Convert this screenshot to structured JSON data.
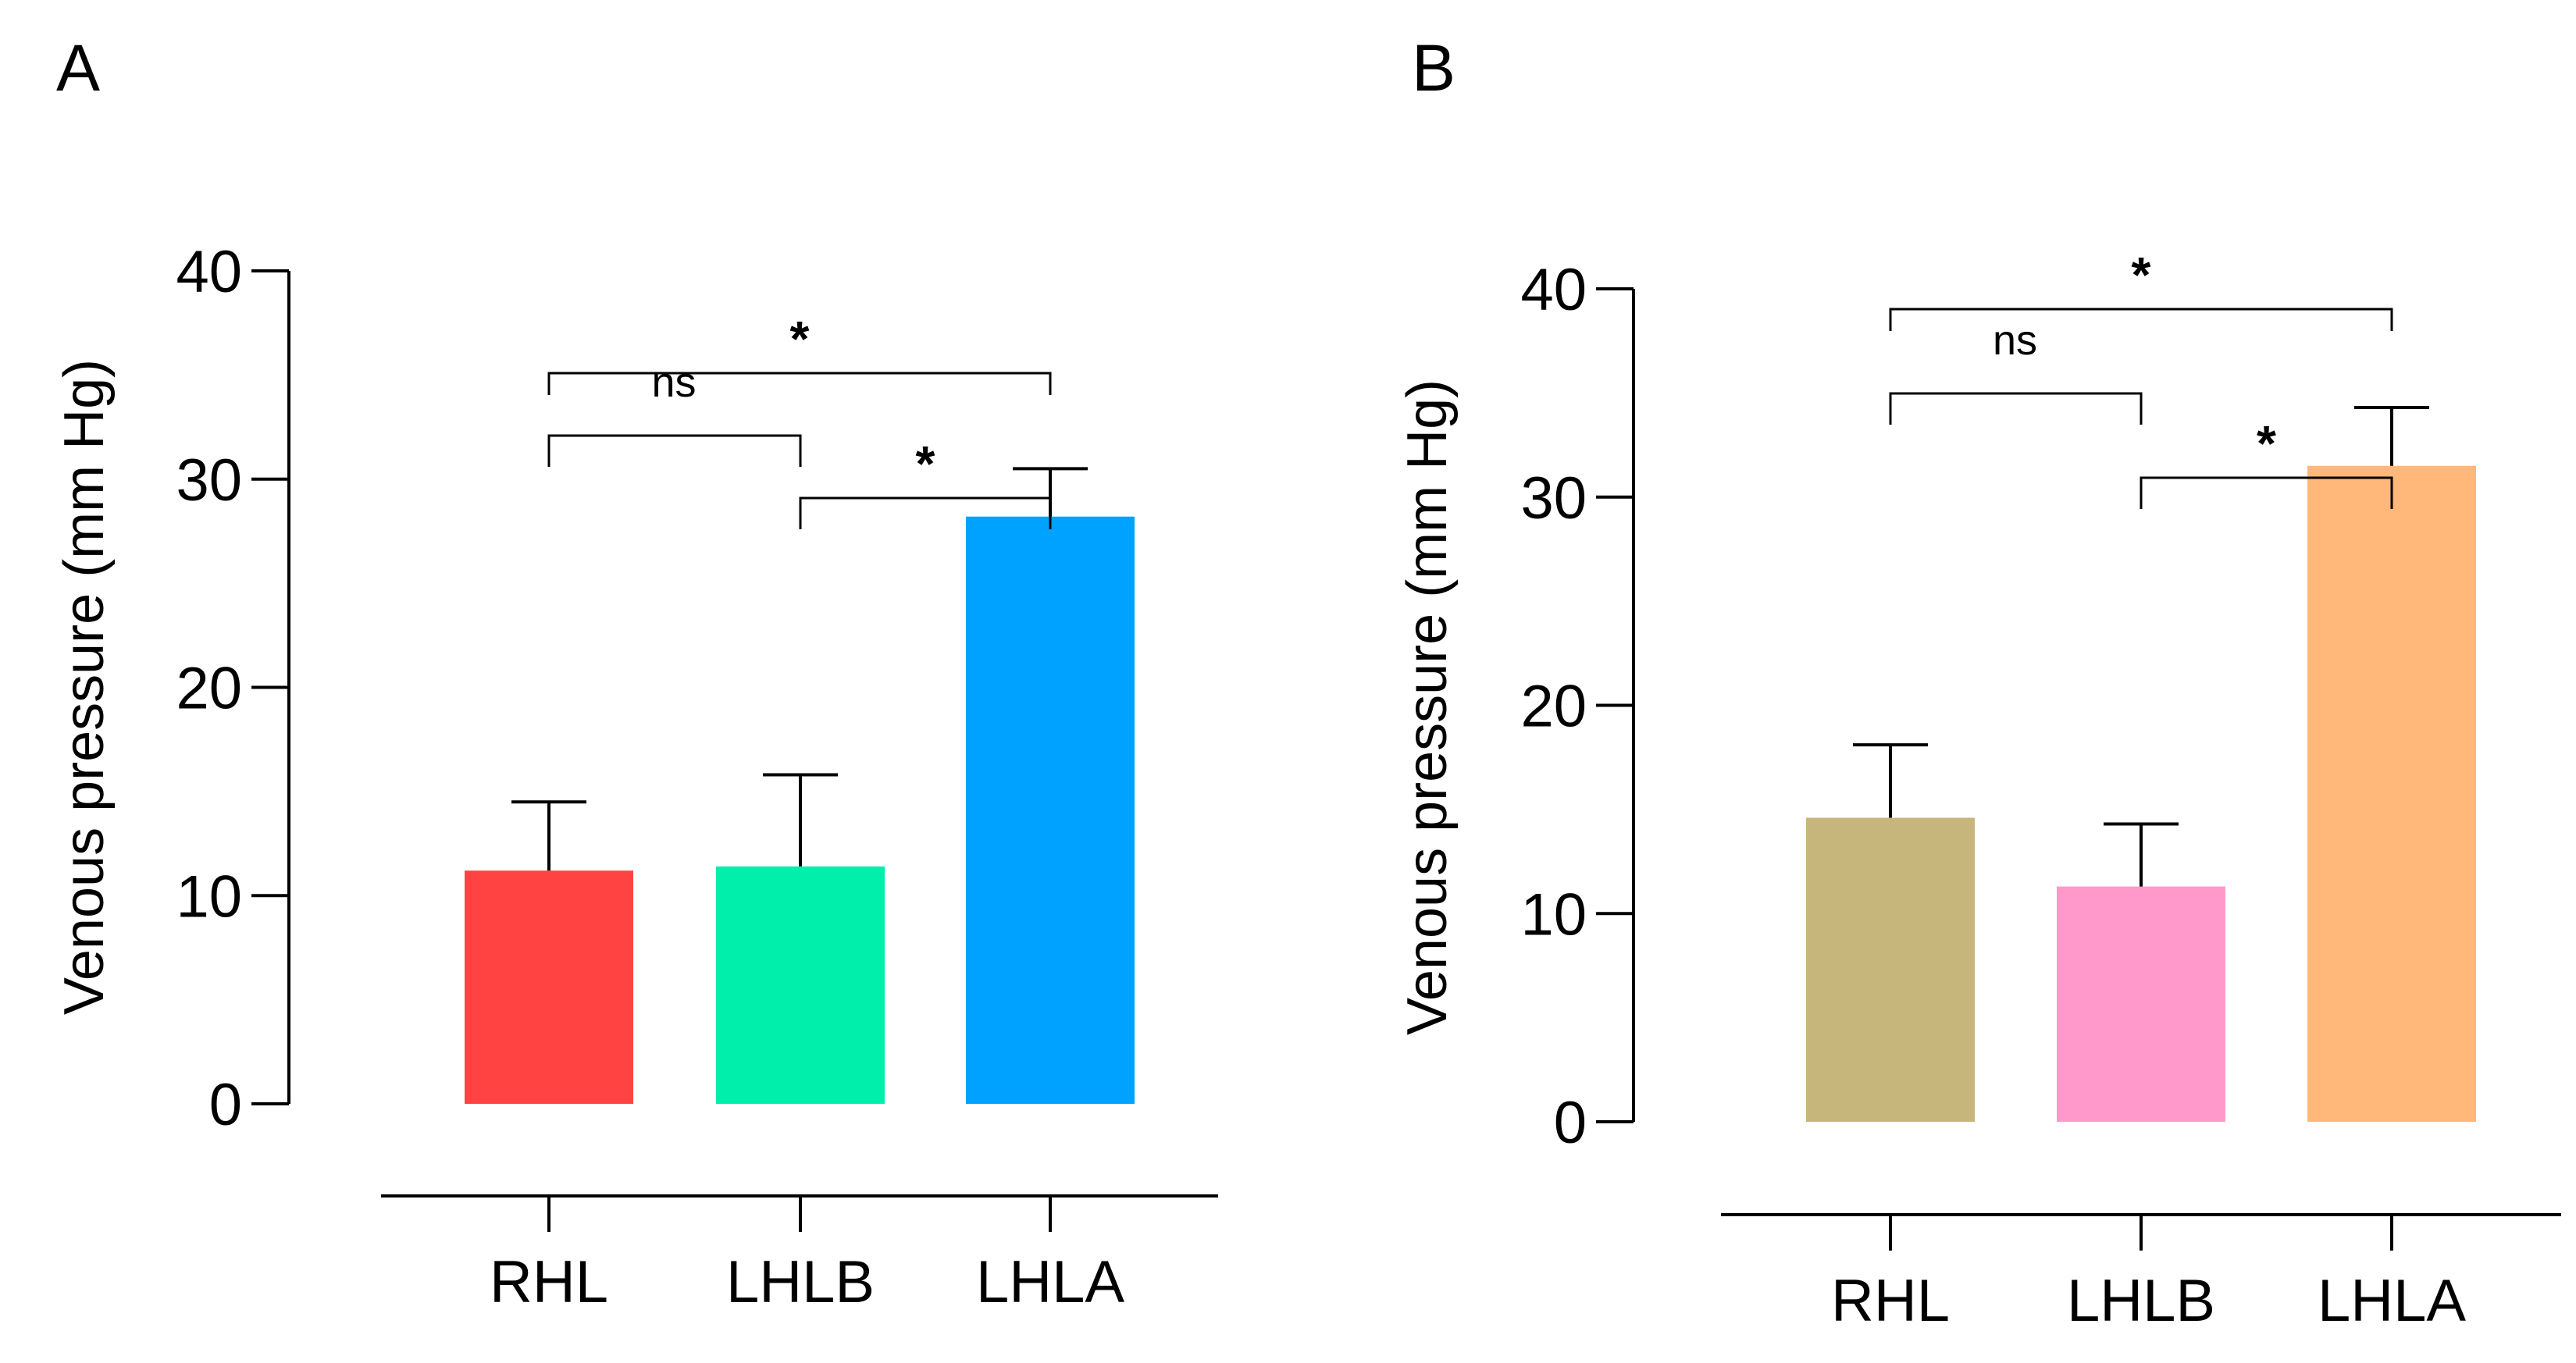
{
  "chart_data": [
    {
      "panel": "A",
      "type": "bar",
      "ylabel": "Venous pressure (mm Hg)",
      "xlabel": "",
      "ylim": [
        0,
        40
      ],
      "yticks": [
        0,
        10,
        20,
        30,
        40
      ],
      "categories": [
        "RHL",
        "LHLB",
        "LHLA"
      ],
      "values": [
        11.2,
        11.4,
        28.2
      ],
      "errors": [
        3.3,
        4.4,
        2.3
      ],
      "colors": [
        "#ff4343",
        "#00f0ab",
        "#00a2ff"
      ],
      "comparisons": [
        {
          "groups": [
            "RHL",
            "LHLB"
          ],
          "label": "ns",
          "level": 2
        },
        {
          "groups": [
            "LHLB",
            "LHLA"
          ],
          "label": "*",
          "level": 1
        },
        {
          "groups": [
            "RHL",
            "LHLA"
          ],
          "label": "*",
          "level": 3
        }
      ]
    },
    {
      "panel": "B",
      "type": "bar",
      "ylabel": "Venous pressure (mm Hg)",
      "xlabel": "",
      "ylim": [
        0,
        40
      ],
      "yticks": [
        0,
        10,
        20,
        30,
        40
      ],
      "categories": [
        "RHL",
        "LHLB",
        "LHLA"
      ],
      "values": [
        14.6,
        11.3,
        31.5
      ],
      "errors": [
        3.5,
        3.0,
        2.8
      ],
      "colors": [
        "#c7b67b",
        "#ff99cb",
        "#ffb87a"
      ],
      "comparisons": [
        {
          "groups": [
            "RHL",
            "LHLB"
          ],
          "label": "ns",
          "level": 2
        },
        {
          "groups": [
            "LHLB",
            "LHLA"
          ],
          "label": "*",
          "level": 1
        },
        {
          "groups": [
            "RHL",
            "LHLA"
          ],
          "label": "*",
          "level": 3
        }
      ]
    }
  ]
}
